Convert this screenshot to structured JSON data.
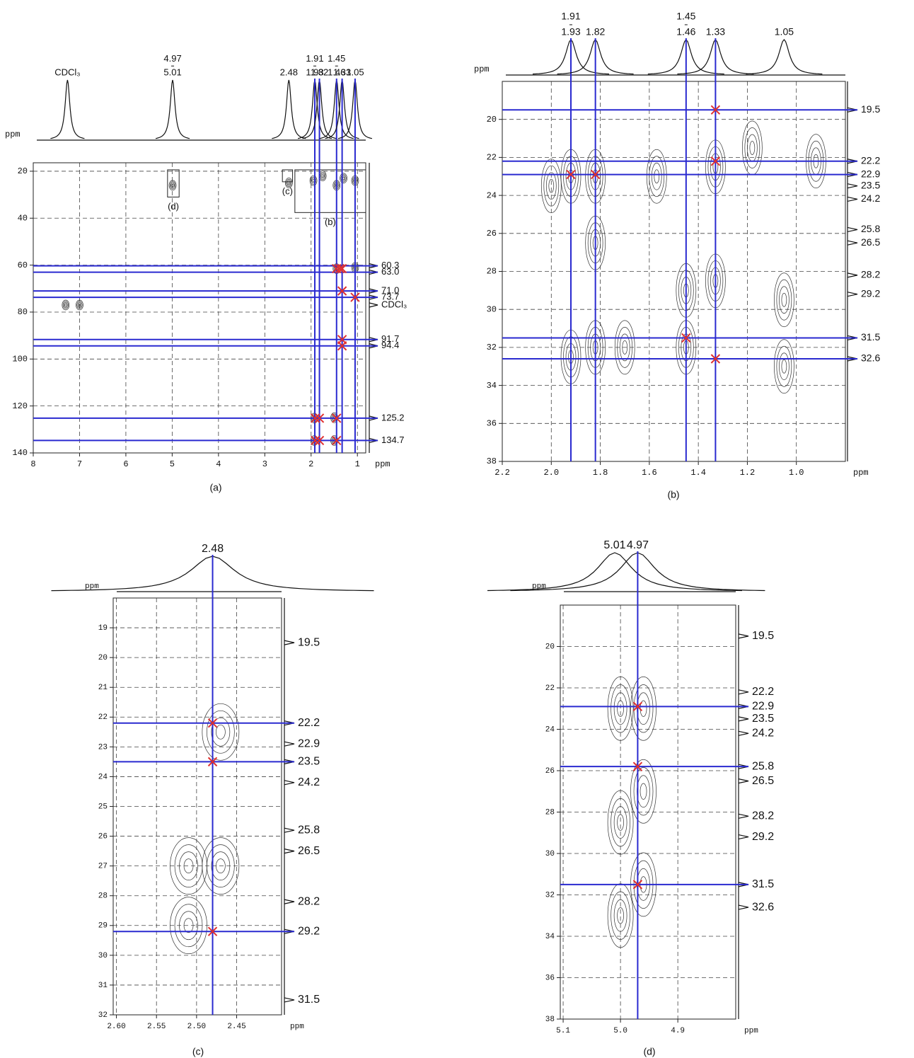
{
  "chart_data": [
    {
      "type": "contour",
      "caption": "(a)",
      "x_label": "ppm",
      "y_label": "ppm",
      "xlim": [
        8,
        0.82
      ],
      "ylim": [
        16.4,
        140
      ],
      "xticks": [
        8,
        7,
        6,
        5,
        4,
        3,
        2,
        1
      ],
      "yticks": [
        20,
        40,
        60,
        80,
        100,
        120,
        140
      ],
      "grid": true,
      "line_color": "#2a2ad0",
      "cross_color": "#e03030",
      "peaks": [
        {
          "x": 7.26,
          "labels": [
            "CDCl₃"
          ]
        },
        {
          "x": 4.99,
          "labels": [
            "4.97",
            "5.01"
          ]
        },
        {
          "x": 2.48,
          "labels": [
            "2.48"
          ]
        },
        {
          "x": 1.92,
          "labels": [
            "1.91",
            "1.93"
          ],
          "line": true
        },
        {
          "x": 1.82,
          "labels": [
            "1.82"
          ],
          "line": true
        },
        {
          "x": 1.45,
          "labels": [
            "1.45",
            "1.46"
          ],
          "line": true
        },
        {
          "x": 1.33,
          "labels": [
            "1.33"
          ],
          "line": true
        },
        {
          "x": 1.05,
          "labels": [
            "1.05"
          ],
          "line": true
        }
      ],
      "right_labels": [
        {
          "value": 60.3,
          "label": "60.3",
          "line": true
        },
        {
          "value": 63.0,
          "label": "63.0",
          "line": true
        },
        {
          "value": 71.0,
          "label": "71.0",
          "line": true
        },
        {
          "value": 73.7,
          "label": "73.7",
          "line": true
        },
        {
          "value": 77,
          "label": "CDCl₃"
        },
        {
          "value": 91.7,
          "label": "91.7",
          "line": true
        },
        {
          "value": 94.4,
          "label": "94.4",
          "line": true
        },
        {
          "value": 125.2,
          "label": "125.2",
          "line": true
        },
        {
          "value": 134.7,
          "label": "134.7",
          "line": true
        }
      ],
      "crosses": [
        [
          1.45,
          61.5
        ],
        [
          1.38,
          61.5
        ],
        [
          1.33,
          61.5
        ],
        [
          1.33,
          71
        ],
        [
          1.05,
          73.7
        ],
        [
          1.33,
          91.7
        ],
        [
          1.33,
          94.4
        ],
        [
          1.91,
          125.2
        ],
        [
          1.82,
          125.2
        ],
        [
          1.45,
          125.2
        ],
        [
          1.91,
          134.7
        ],
        [
          1.82,
          134.7
        ],
        [
          1.45,
          134.7
        ]
      ],
      "contours": [
        [
          4.99,
          26
        ],
        [
          2.48,
          25
        ],
        [
          1.95,
          24
        ],
        [
          1.75,
          22
        ],
        [
          1.45,
          26
        ],
        [
          1.3,
          23
        ],
        [
          1.05,
          24
        ],
        [
          1.45,
          61.5
        ],
        [
          1.05,
          61
        ],
        [
          1.93,
          125.2
        ],
        [
          1.93,
          134.7
        ],
        [
          1.5,
          125
        ],
        [
          1.5,
          134.7
        ],
        [
          7.3,
          77
        ],
        [
          7.0,
          77
        ]
      ],
      "regions": [
        {
          "label": "(d)",
          "x": [
            5.1,
            4.85
          ],
          "y": [
            19.4,
            31
          ]
        },
        {
          "label": "(c)",
          "x": [
            2.62,
            2.4
          ],
          "y": [
            19.4,
            24.5
          ]
        },
        {
          "label": "(b)",
          "x": [
            2.35,
            0.82
          ],
          "y": [
            19.4,
            37.6
          ]
        }
      ]
    },
    {
      "type": "contour",
      "caption": "(b)",
      "x_label": "ppm",
      "y_label": "ppm",
      "xlim": [
        2.2,
        0.8
      ],
      "ylim": [
        18,
        38
      ],
      "xticks": [
        2.2,
        {
          "value": 2,
          "label": "2.0"
        },
        1.8,
        1.6,
        1.4,
        1.2,
        {
          "value": 1,
          "label": "1.0"
        }
      ],
      "yticks": [
        20,
        22,
        24,
        26,
        28,
        30,
        32,
        34,
        36,
        38
      ],
      "grid": true,
      "line_color": "#2a2ad0",
      "cross_color": "#e03030",
      "peaks": [
        {
          "x": 1.92,
          "labels": [
            "1.91",
            "1.93"
          ],
          "line": true
        },
        {
          "x": 1.82,
          "labels": [
            "1.82"
          ],
          "line": true
        },
        {
          "x": 1.45,
          "labels": [
            "1.45",
            "1.46"
          ],
          "line": true
        },
        {
          "x": 1.33,
          "labels": [
            "1.33"
          ],
          "line": true
        },
        {
          "x": 1.05,
          "labels": [
            "1.05"
          ]
        }
      ],
      "right_labels": [
        {
          "value": 19.5,
          "label": "19.5",
          "line": true
        },
        {
          "value": 22.2,
          "label": "22.2",
          "line": true
        },
        {
          "value": 22.9,
          "label": "22.9",
          "line": true
        },
        {
          "value": 23.5,
          "label": "23.5"
        },
        {
          "value": 24.2,
          "label": "24.2"
        },
        {
          "value": 25.8,
          "label": "25.8"
        },
        {
          "value": 26.5,
          "label": "26.5"
        },
        {
          "value": 28.2,
          "label": "28.2"
        },
        {
          "value": 29.2,
          "label": "29.2"
        },
        {
          "value": 31.5,
          "label": "31.5",
          "line": true
        },
        {
          "value": 32.6,
          "label": "32.6",
          "line": true
        }
      ],
      "crosses": [
        [
          1.33,
          19.5
        ],
        [
          1.33,
          22.2
        ],
        [
          1.92,
          22.9
        ],
        [
          1.82,
          22.9
        ],
        [
          1.45,
          31.5
        ],
        [
          1.33,
          32.6
        ]
      ],
      "contours": [
        [
          2.0,
          23.5
        ],
        [
          1.92,
          23
        ],
        [
          1.82,
          23
        ],
        [
          1.82,
          26.5
        ],
        [
          1.57,
          23
        ],
        [
          1.45,
          29
        ],
        [
          1.45,
          32
        ],
        [
          1.33,
          22.5
        ],
        [
          1.33,
          28.5
        ],
        [
          1.18,
          21.5
        ],
        [
          1.05,
          29.5
        ],
        [
          1.05,
          33
        ],
        [
          0.92,
          22.2
        ],
        [
          1.82,
          32
        ],
        [
          1.92,
          32.5
        ],
        [
          1.7,
          32
        ]
      ]
    },
    {
      "type": "contour",
      "caption": "(c)",
      "x_label": "ppm",
      "y_label": "ppm",
      "xlim": [
        2.604,
        2.394
      ],
      "ylim": [
        18,
        32
      ],
      "xticks": [
        {
          "value": 2.6,
          "label": "2.60"
        },
        2.55,
        {
          "value": 2.5,
          "label": "2.50"
        },
        2.45
      ],
      "yticks": [
        19,
        20,
        21,
        22,
        23,
        24,
        25,
        26,
        27,
        28,
        29,
        30,
        31,
        32
      ],
      "grid": true,
      "line_color": "#2a2ad0",
      "cross_color": "#e03030",
      "peaks": [
        {
          "x": 2.48,
          "labels": [
            "2.48"
          ],
          "line": true
        }
      ],
      "right_labels": [
        {
          "value": 19.5,
          "label": "19.5"
        },
        {
          "value": 22.2,
          "label": "22.2",
          "line": true
        },
        {
          "value": 22.9,
          "label": "22.9"
        },
        {
          "value": 23.5,
          "label": "23.5",
          "line": true
        },
        {
          "value": 24.2,
          "label": "24.2"
        },
        {
          "value": 25.8,
          "label": "25.8"
        },
        {
          "value": 26.5,
          "label": "26.5"
        },
        {
          "value": 28.2,
          "label": "28.2"
        },
        {
          "value": 29.2,
          "label": "29.2",
          "line": true
        },
        {
          "value": 31.5,
          "label": "31.5"
        }
      ],
      "crosses": [
        [
          2.48,
          22.2
        ],
        [
          2.48,
          23.5
        ],
        [
          2.48,
          29.2
        ]
      ],
      "contours": [
        [
          2.51,
          27
        ],
        [
          2.47,
          27
        ],
        [
          2.47,
          22.5
        ],
        [
          2.51,
          29
        ]
      ]
    },
    {
      "type": "contour",
      "caption": "(d)",
      "x_label": "ppm",
      "y_label": "ppm",
      "xlim": [
        5.105,
        4.799
      ],
      "ylim": [
        18,
        38
      ],
      "xticks": [
        5.1,
        {
          "value": 5,
          "label": "5.0"
        },
        4.9
      ],
      "yticks": [
        20,
        22,
        24,
        26,
        28,
        30,
        32,
        34,
        36,
        38
      ],
      "grid": true,
      "line_color": "#2a2ad0",
      "cross_color": "#e03030",
      "peaks": [
        {
          "x": 5.01,
          "labels": [
            "5.01"
          ]
        },
        {
          "x": 4.97,
          "labels": [
            "4.97"
          ],
          "line": true
        }
      ],
      "right_labels": [
        {
          "value": 19.5,
          "label": "19.5"
        },
        {
          "value": 22.2,
          "label": "22.2"
        },
        {
          "value": 22.9,
          "label": "22.9",
          "line": true
        },
        {
          "value": 23.5,
          "label": "23.5"
        },
        {
          "value": 24.2,
          "label": "24.2"
        },
        {
          "value": 25.8,
          "label": "25.8",
          "line": true
        },
        {
          "value": 26.5,
          "label": "26.5"
        },
        {
          "value": 28.2,
          "label": "28.2"
        },
        {
          "value": 29.2,
          "label": "29.2"
        },
        {
          "value": 31.5,
          "label": "31.5",
          "line": true
        },
        {
          "value": 32.6,
          "label": "32.6"
        }
      ],
      "crosses": [
        [
          4.97,
          22.9
        ],
        [
          4.97,
          25.8
        ],
        [
          4.97,
          31.5
        ]
      ],
      "contours": [
        [
          5.0,
          23
        ],
        [
          4.96,
          23
        ],
        [
          5.0,
          28.5
        ],
        [
          4.96,
          27
        ],
        [
          4.96,
          31.5
        ],
        [
          5.0,
          33
        ]
      ]
    }
  ]
}
